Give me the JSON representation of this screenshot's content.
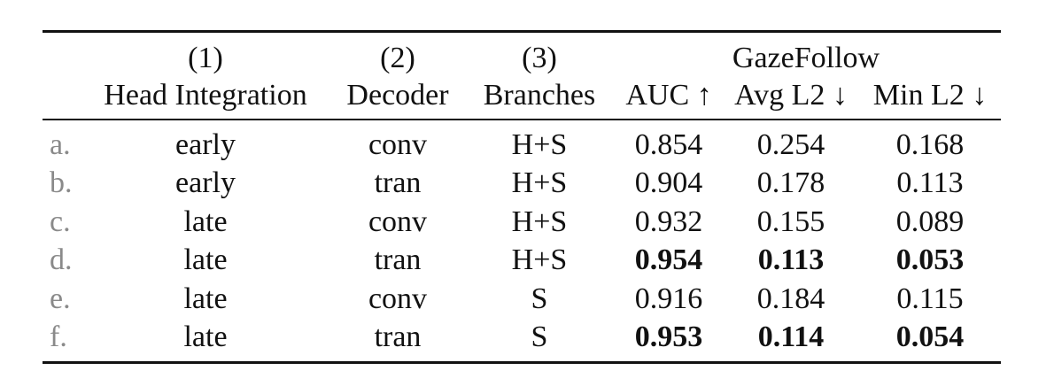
{
  "header": {
    "group_row": [
      "(1)",
      "(2)",
      "(3)",
      "GazeFollow"
    ],
    "columns": [
      "Head Integration",
      "Decoder",
      "Branches",
      "AUC ↑",
      "Avg L2 ↓",
      "Min L2 ↓"
    ]
  },
  "rows": [
    {
      "id": "a.",
      "head": "early",
      "decoder": "conv",
      "branches": "H+S",
      "auc": "0.854",
      "avg_l2": "0.254",
      "min_l2": "0.168",
      "best": false
    },
    {
      "id": "b.",
      "head": "early",
      "decoder": "tran",
      "branches": "H+S",
      "auc": "0.904",
      "avg_l2": "0.178",
      "min_l2": "0.113",
      "best": false
    },
    {
      "id": "c.",
      "head": "late",
      "decoder": "conv",
      "branches": "H+S",
      "auc": "0.932",
      "avg_l2": "0.155",
      "min_l2": "0.089",
      "best": false
    },
    {
      "id": "d.",
      "head": "late",
      "decoder": "tran",
      "branches": "H+S",
      "auc": "0.954",
      "avg_l2": "0.113",
      "min_l2": "0.053",
      "best": true
    },
    {
      "id": "e.",
      "head": "late",
      "decoder": "conv",
      "branches": "S",
      "auc": "0.916",
      "avg_l2": "0.184",
      "min_l2": "0.115",
      "best": false
    },
    {
      "id": "f.",
      "head": "late",
      "decoder": "tran",
      "branches": "S",
      "auc": "0.953",
      "avg_l2": "0.114",
      "min_l2": "0.054",
      "best": true
    }
  ]
}
